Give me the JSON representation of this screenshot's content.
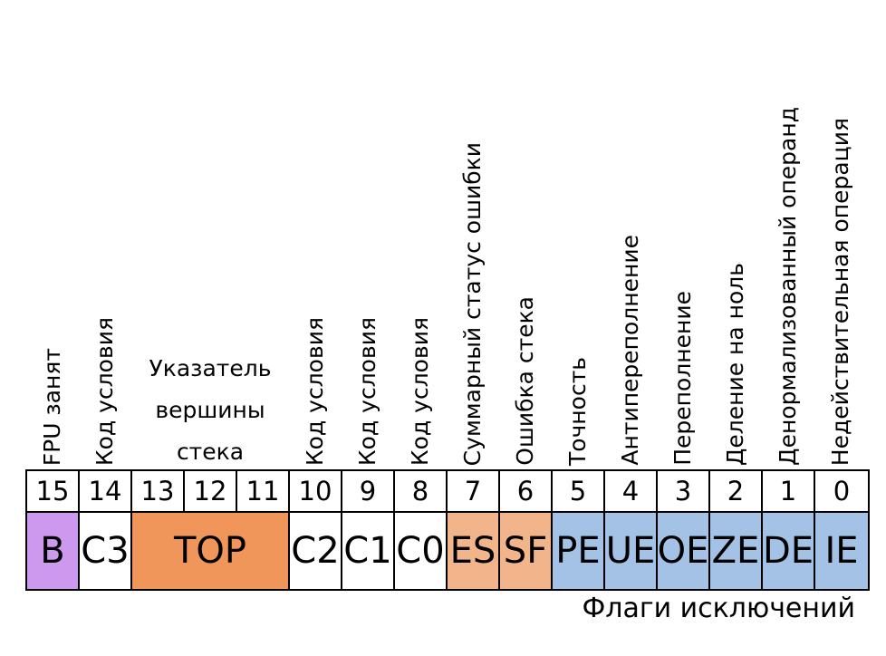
{
  "vertical_labels": [
    "FPU занят",
    "Код условия",
    "Код условия",
    "Код условия",
    "Код условия",
    "Суммарный статус ошибки",
    "Ошибка стека",
    "Точность",
    "Антипереполнение",
    "Переполнение",
    "Деление на ноль",
    "Денормализованный операнд",
    "Недействительная операция"
  ],
  "top_label": [
    "Указатель",
    "вершины",
    "стека"
  ],
  "bits": [
    "15",
    "14",
    "13",
    "12",
    "11",
    "10",
    "9",
    "8",
    "7",
    "6",
    "5",
    "4",
    "3",
    "2",
    "1",
    "0"
  ],
  "fields": [
    {
      "label": "B",
      "color": "#cc99ee"
    },
    {
      "label": "C3",
      "color": "#ffffff"
    },
    {
      "label": "TOP",
      "color": "#f0965a"
    },
    {
      "label": "C2",
      "color": "#ffffff"
    },
    {
      "label": "C1",
      "color": "#ffffff"
    },
    {
      "label": "C0",
      "color": "#ffffff"
    },
    {
      "label": "ES",
      "color": "#f2b48a"
    },
    {
      "label": "SF",
      "color": "#f2b48a"
    },
    {
      "label": "PE",
      "color": "#a3c2e6"
    },
    {
      "label": "UE",
      "color": "#a3c2e6"
    },
    {
      "label": "OE",
      "color": "#a3c2e6"
    },
    {
      "label": "ZE",
      "color": "#a3c2e6"
    },
    {
      "label": "DE",
      "color": "#a3c2e6"
    },
    {
      "label": "IE",
      "color": "#a3c2e6"
    }
  ],
  "footer": "Флаги исключений"
}
